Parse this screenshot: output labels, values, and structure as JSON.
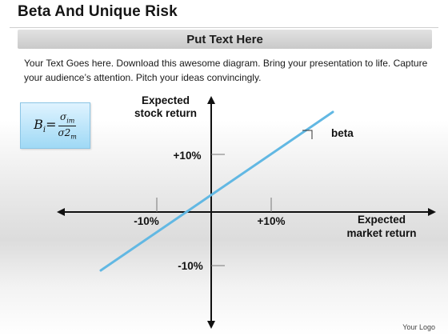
{
  "title": "Beta And Unique Risk",
  "subtitle": "Put Text Here",
  "body_text": "Your Text Goes here. Download this awesome diagram. Bring your presentation to life. Capture your audience’s attention. Pitch your ideas convincingly.",
  "formula": {
    "lhs": "B",
    "lhs_sub": "i",
    "equals": "=",
    "numerator": "σ",
    "numerator_sub": "im",
    "denominator": "σ2",
    "denominator_sub": "m"
  },
  "axes": {
    "y_label_line1": "Expected",
    "y_label_line2": "stock return",
    "x_label_line1": "Expected",
    "x_label_line2": "market return",
    "tick_y_pos": "+10%",
    "tick_y_neg": "-10%",
    "tick_x_pos": "+10%",
    "tick_x_neg": "-10%"
  },
  "line_label": "beta",
  "logo_text": "Your Logo",
  "colors": {
    "beta_line": "#62b8e3",
    "formula_box": "#aee0f7"
  }
}
